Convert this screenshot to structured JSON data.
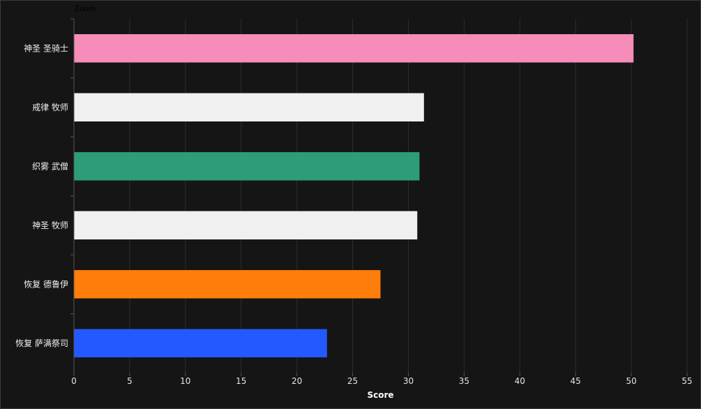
{
  "zoom_label": "Zoom",
  "chart_data": {
    "type": "bar",
    "orientation": "horizontal",
    "title": "",
    "xlabel": "Score",
    "ylabel": "",
    "xlim": [
      0,
      55
    ],
    "x_ticks": [
      0,
      5,
      10,
      15,
      20,
      25,
      30,
      35,
      40,
      45,
      50,
      55
    ],
    "grid": true,
    "categories": [
      "神圣 圣骑士",
      "戒律 牧师",
      "织雾 武僧",
      "神圣 牧师",
      "恢复 德鲁伊",
      "恢复 萨满祭司"
    ],
    "values": [
      50.2,
      31.4,
      31.0,
      30.8,
      27.5,
      22.7
    ],
    "colors": [
      "#f58cba",
      "#f0f0f0",
      "#2d9c78",
      "#f0f0f0",
      "#ff7d0a",
      "#2459ff"
    ]
  },
  "colors": {
    "background": "#151515",
    "grid": "#2e2e2e",
    "axis": "#555555"
  }
}
